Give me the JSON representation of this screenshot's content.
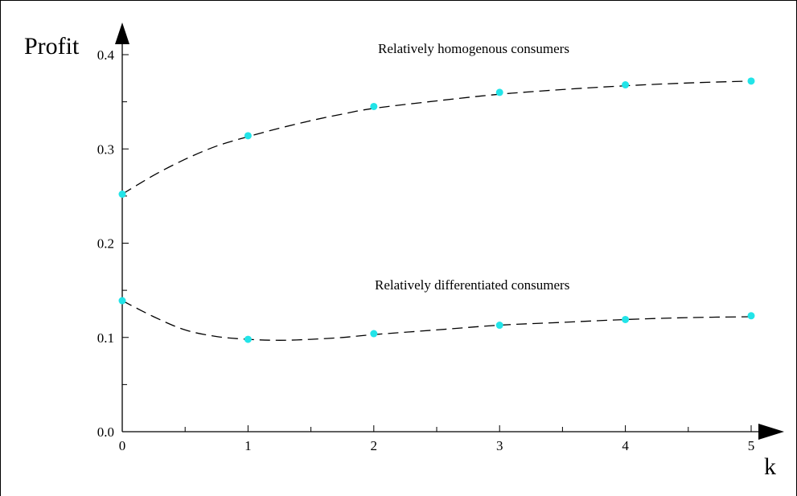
{
  "chart_data": {
    "type": "scatter",
    "xlabel": "k",
    "ylabel": "Profit",
    "xlim": [
      0,
      5
    ],
    "ylim": [
      0,
      0.4
    ],
    "x_ticks": [
      "0",
      "1",
      "2",
      "3",
      "4",
      "5"
    ],
    "y_ticks": [
      "0.0",
      "0.1",
      "0.2",
      "0.3",
      "0.4"
    ],
    "grid": false,
    "legend": "none",
    "point_color": "#22e4e8",
    "curve_color": "#000000",
    "series": [
      {
        "name": "Relatively homogenous consumers",
        "points": [
          [
            0,
            0.252
          ],
          [
            1,
            0.314
          ],
          [
            2,
            0.345
          ],
          [
            3,
            0.36
          ],
          [
            4,
            0.368
          ],
          [
            5,
            0.372
          ]
        ],
        "curve": [
          [
            0,
            0.252
          ],
          [
            0.25,
            0.272
          ],
          [
            0.5,
            0.289
          ],
          [
            0.75,
            0.303
          ],
          [
            1,
            0.313
          ],
          [
            1.25,
            0.322
          ],
          [
            1.5,
            0.33
          ],
          [
            1.75,
            0.337
          ],
          [
            2,
            0.343
          ],
          [
            2.5,
            0.351
          ],
          [
            3,
            0.358
          ],
          [
            3.5,
            0.363
          ],
          [
            4,
            0.367
          ],
          [
            4.5,
            0.37
          ],
          [
            5,
            0.372
          ]
        ],
        "annotation": "Relatively homogenous consumers"
      },
      {
        "name": "Relatively differentiated consumers",
        "points": [
          [
            0,
            0.139
          ],
          [
            1,
            0.098
          ],
          [
            2,
            0.104
          ],
          [
            3,
            0.113
          ],
          [
            4,
            0.119
          ],
          [
            5,
            0.123
          ]
        ],
        "curve": [
          [
            0,
            0.139
          ],
          [
            0.25,
            0.122
          ],
          [
            0.5,
            0.108
          ],
          [
            0.75,
            0.101
          ],
          [
            1,
            0.098
          ],
          [
            1.25,
            0.097
          ],
          [
            1.5,
            0.098
          ],
          [
            1.75,
            0.1
          ],
          [
            2,
            0.103
          ],
          [
            2.5,
            0.108
          ],
          [
            3,
            0.113
          ],
          [
            3.5,
            0.116
          ],
          [
            4,
            0.119
          ],
          [
            4.5,
            0.121
          ],
          [
            5,
            0.122
          ]
        ],
        "annotation": "Relatively differentiated consumers"
      }
    ]
  }
}
